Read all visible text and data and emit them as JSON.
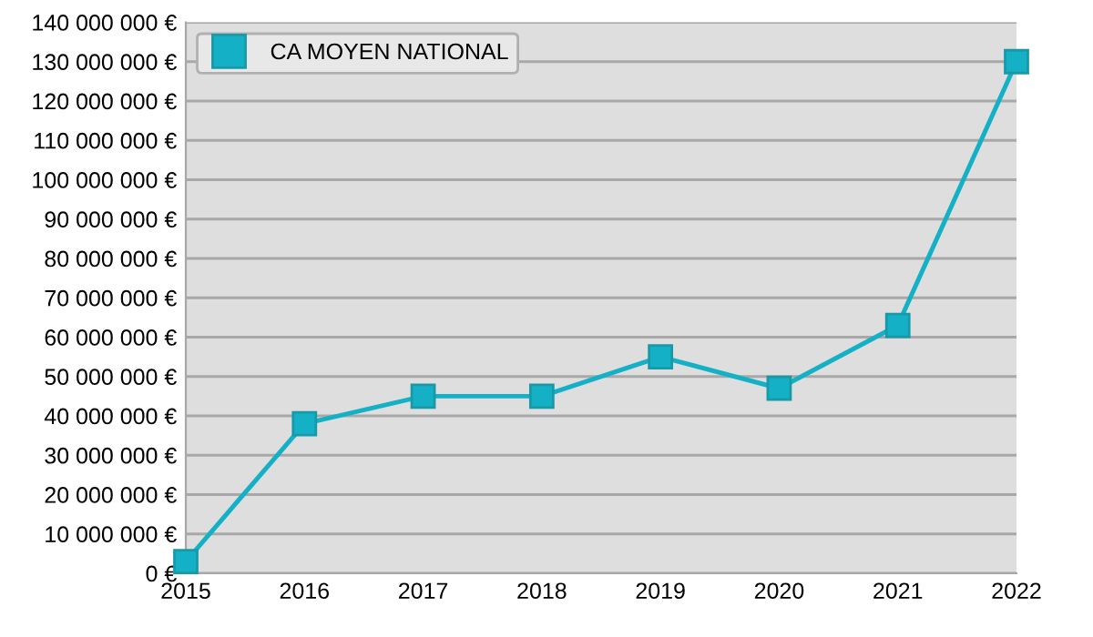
{
  "chart_data": {
    "type": "line",
    "x": [
      2015,
      2016,
      2017,
      2018,
      2019,
      2020,
      2021,
      2022
    ],
    "series": [
      {
        "name": "CA MOYEN NATIONAL",
        "color": "#14b1c6",
        "values": [
          3000000,
          38000000,
          45000000,
          45000000,
          55000000,
          47000000,
          63000000,
          130000000
        ]
      }
    ],
    "xlim": [
      2015,
      2022
    ],
    "xticks": [
      2015,
      2016,
      2017,
      2018,
      2019,
      2020,
      2021,
      2022
    ],
    "ylim": [
      0,
      140000000
    ],
    "yticks": [
      {
        "value": 0,
        "label": "0 €"
      },
      {
        "value": 10000000,
        "label": "10 000 000 €"
      },
      {
        "value": 20000000,
        "label": "20 000 000 €"
      },
      {
        "value": 30000000,
        "label": "30 000 000 €"
      },
      {
        "value": 40000000,
        "label": "40 000 000 €"
      },
      {
        "value": 50000000,
        "label": "50 000 000 €"
      },
      {
        "value": 60000000,
        "label": "60 000 000 €"
      },
      {
        "value": 70000000,
        "label": "70 000 000 €"
      },
      {
        "value": 80000000,
        "label": "80 000 000 €"
      },
      {
        "value": 90000000,
        "label": "90 000 000 €"
      },
      {
        "value": 100000000,
        "label": "100 000 000 €"
      },
      {
        "value": 110000000,
        "label": "110 000 000 €"
      },
      {
        "value": 120000000,
        "label": "120 000 000 €"
      },
      {
        "value": 130000000,
        "label": "130 000 000 €"
      },
      {
        "value": 140000000,
        "label": "140 000 000 €"
      }
    ],
    "grid": "y",
    "legend": "top left",
    "marker": "square",
    "line_style": "solid"
  }
}
